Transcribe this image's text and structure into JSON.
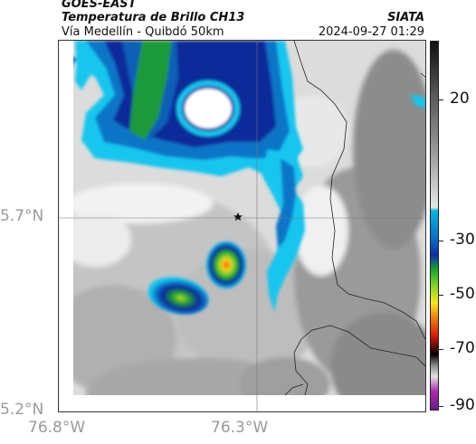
{
  "header": {
    "satellite": "GOES-EAST",
    "product": "Temperatura de Brillo CH13",
    "organization": "SIATA",
    "route": "Vía Medellín - Quibdó 50km",
    "timestamp": "2024-09-27 01:29"
  },
  "axes": {
    "lat_labels": [
      "5.7°N",
      "5.2°N"
    ],
    "lon_labels": [
      "76.8°W",
      "76.3°W"
    ]
  },
  "colorbar": {
    "labels": [
      "20",
      "-30",
      "-50",
      "-70",
      "-90"
    ],
    "colors": {
      "warm_top": "#1a1a1a",
      "gray_mid": "#9a9a9a",
      "cold_start": "#00b7e6",
      "blue": "#0a2fa8",
      "green": "#18a82a",
      "yellow": "#f6e81a",
      "red": "#d81a0a",
      "black": "#000000",
      "magenta": "#b02ab0"
    }
  },
  "map": {
    "marker": "star-icon",
    "colors": {
      "cloud_white": "#f2f2f2",
      "gray_light": "#c8c8c8",
      "gray_dark": "#8c8c8c",
      "cyan": "#12c6ee",
      "blue_mid": "#0a74c8",
      "blue_deep": "#0b2a9a",
      "green": "#1e9a3a",
      "yellow": "#f2e21a",
      "orange": "#e37010",
      "border_line": "#222222"
    }
  }
}
